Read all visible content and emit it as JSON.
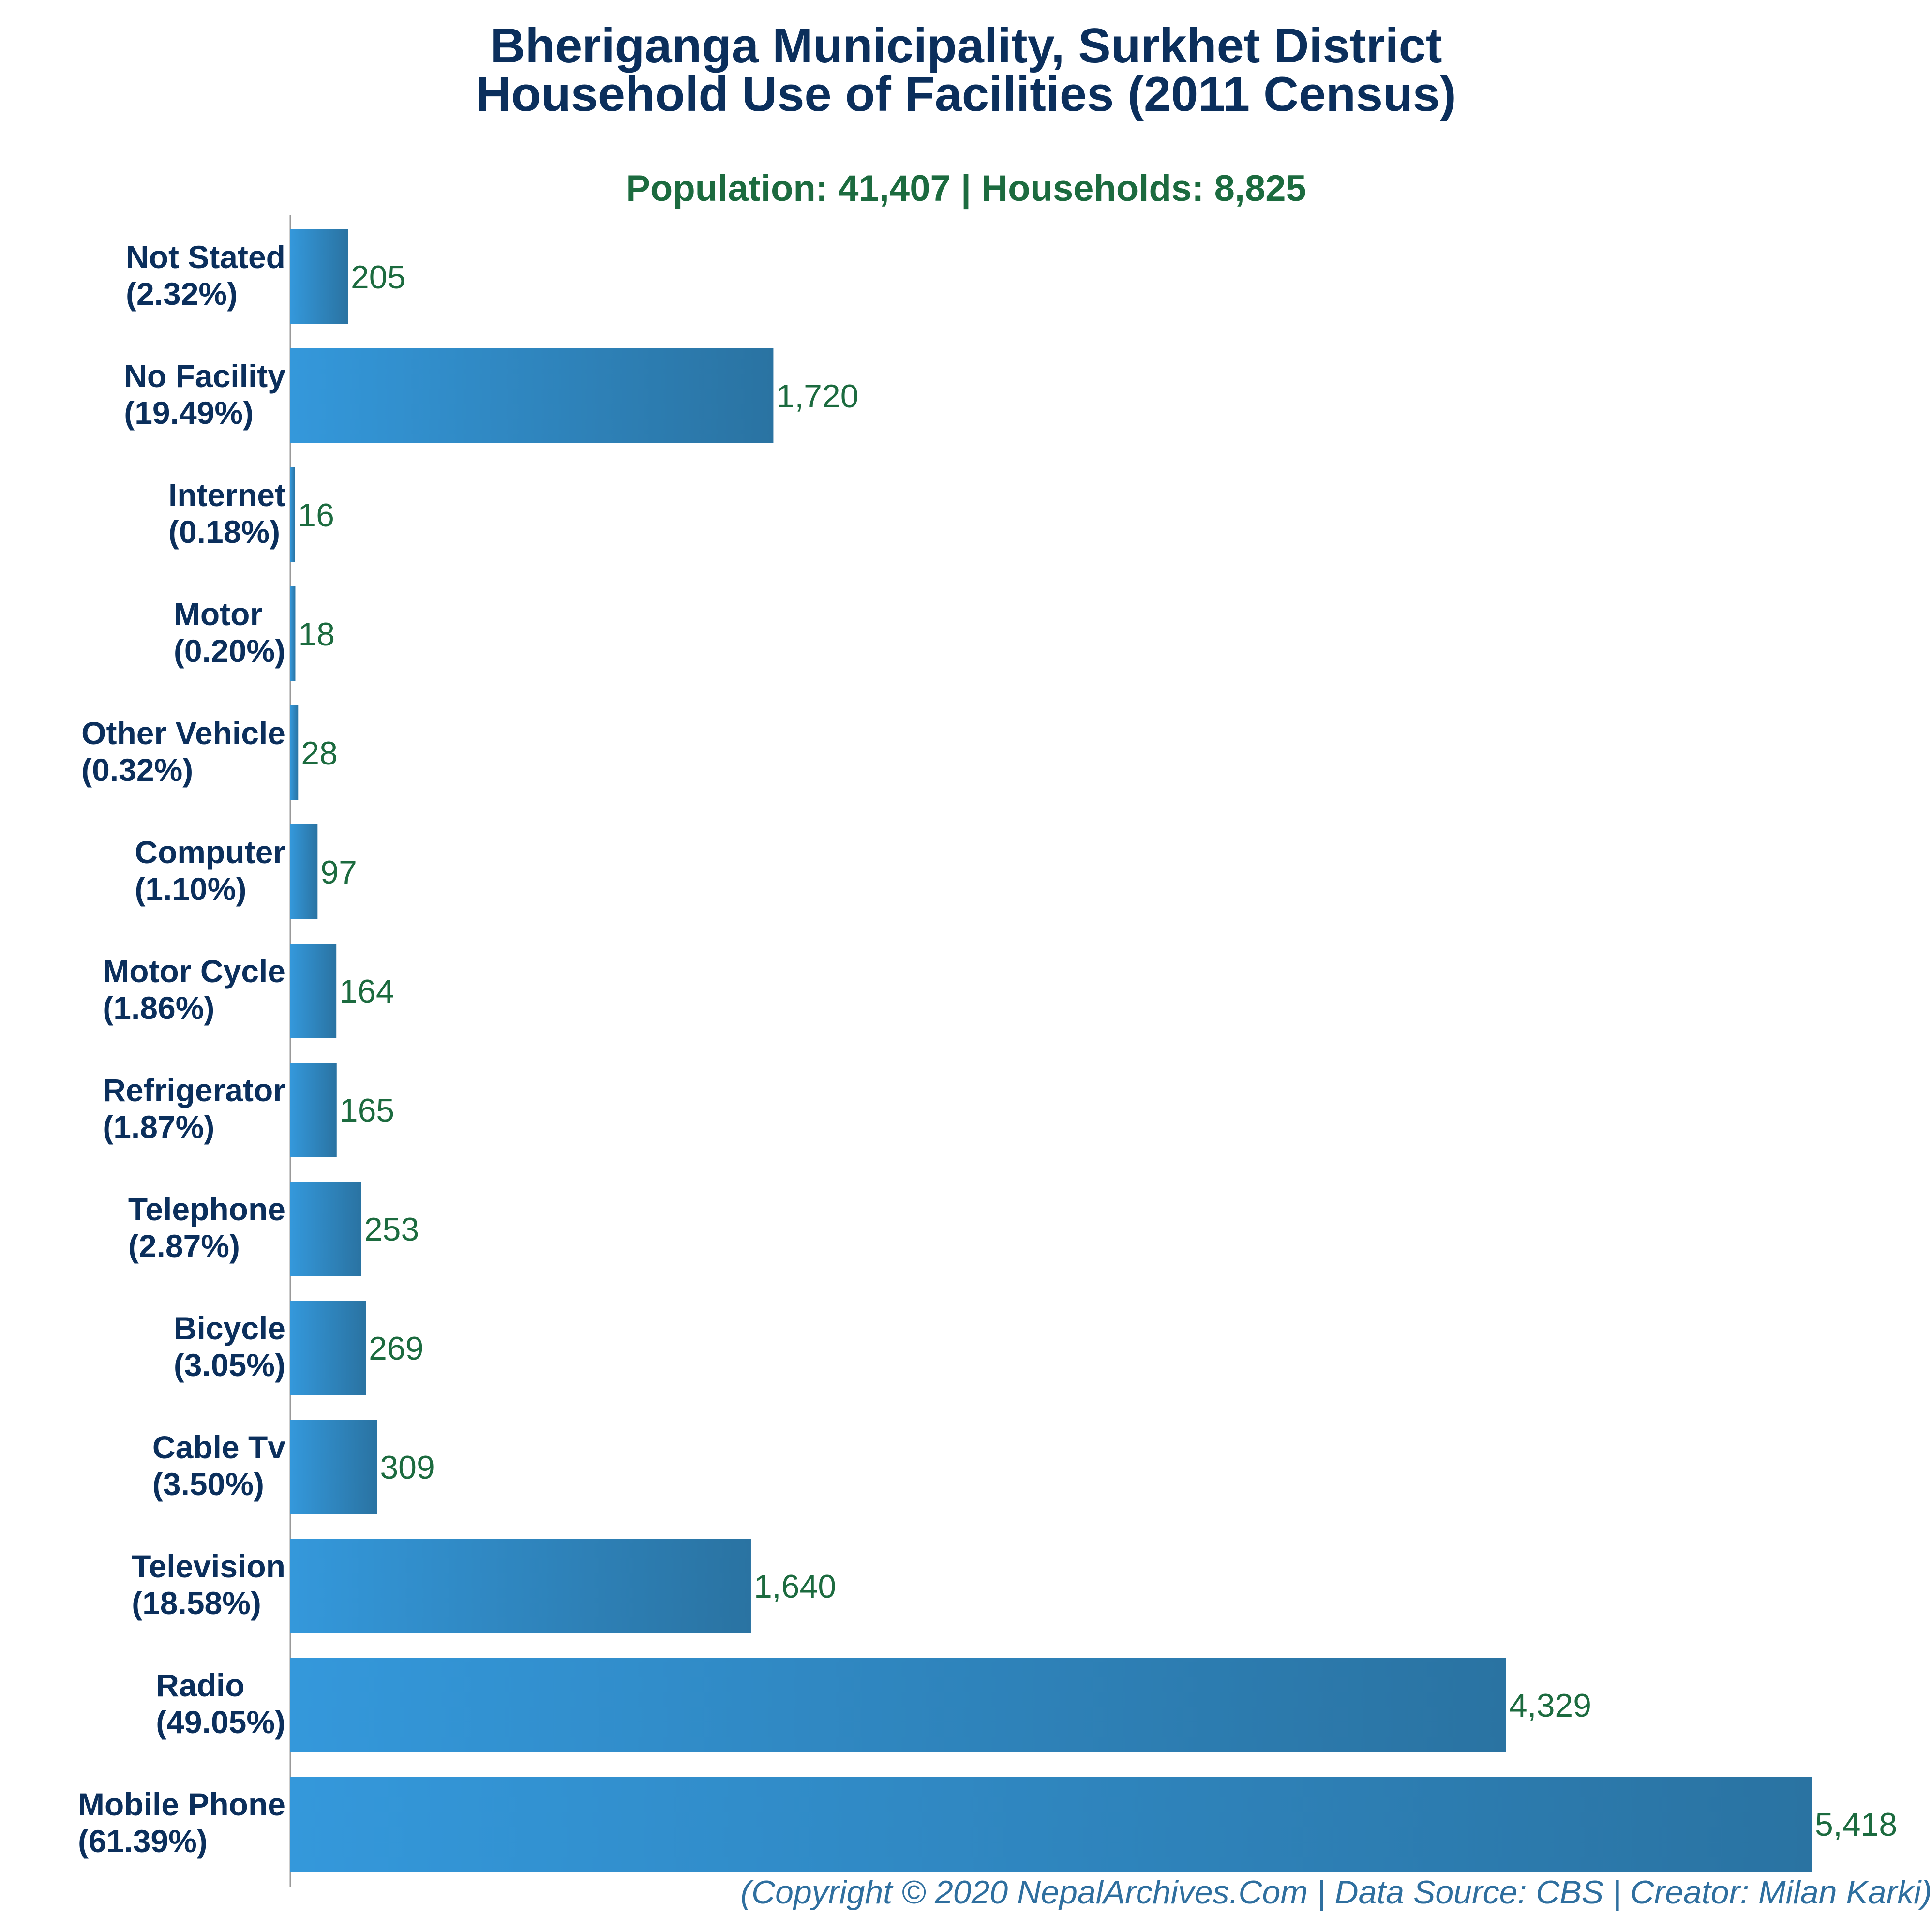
{
  "title_line1": "Bheriganga Municipality, Surkhet District",
  "title_line2": "Household Use of Facilities (2011 Census)",
  "subtitle": "Population: 41,407 | Households: 8,825",
  "footer": "(Copyright © 2020 NepalArchives.Com | Data Source: CBS | Creator: Milan Karki)",
  "colors": {
    "title": "#0b2f5c",
    "subtitle": "#1c6b3f",
    "category_label": "#0b2f5c",
    "value_label": "#1c6b3f",
    "bar_gradient_start": "#3498db",
    "bar_gradient_end": "#2a73a2",
    "axis_line": "#999999",
    "footer": "#2f6f9f"
  },
  "chart_data": {
    "type": "bar",
    "orientation": "horizontal",
    "categories": [
      "Not Stated",
      "No Facility",
      "Internet",
      "Motor",
      "Other Vehicle",
      "Computer",
      "Motor Cycle",
      "Refrigerator",
      "Telephone",
      "Bicycle",
      "Cable Tv",
      "Television",
      "Radio",
      "Mobile Phone"
    ],
    "percent_labels": [
      "(2.32%)",
      "(19.49%)",
      "(0.18%)",
      "(0.20%)",
      "(0.32%)",
      "(1.10%)",
      "(1.86%)",
      "(1.87%)",
      "(2.87%)",
      "(3.05%)",
      "(3.50%)",
      "(18.58%)",
      "(49.05%)",
      "(61.39%)"
    ],
    "values": [
      205,
      1720,
      16,
      18,
      28,
      97,
      164,
      165,
      253,
      269,
      309,
      1640,
      4329,
      5418
    ],
    "value_labels": [
      "205",
      "1,720",
      "16",
      "18",
      "28",
      "97",
      "164",
      "165",
      "253",
      "269",
      "309",
      "1,640",
      "4,329",
      "5,418"
    ],
    "title": "Bheriganga Municipality, Surkhet District Household Use of Facilities (2011 Census)",
    "subtitle": "Population: 41,407 | Households: 8,825",
    "xlabel": "",
    "ylabel": "",
    "xlim": [
      0,
      5418
    ],
    "grid": false,
    "legend": "none"
  }
}
